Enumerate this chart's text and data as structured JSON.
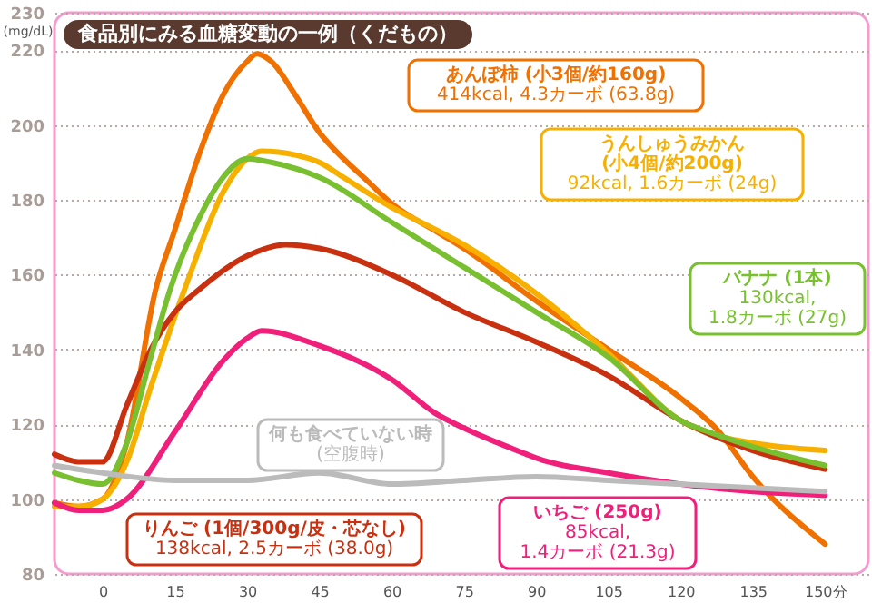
{
  "chart_data": {
    "type": "line",
    "title": "食品別にみる血糖変動の一例（くだもの）",
    "ylabel": "(mg/dL)",
    "xlim": [
      -10,
      159
    ],
    "xticks": [
      0,
      15,
      30,
      45,
      60,
      75,
      90,
      105,
      120,
      135,
      {
        "value": 150,
        "label": "150分"
      }
    ],
    "ylim": [
      80,
      230
    ],
    "yticks": [
      80,
      100,
      120,
      140,
      160,
      180,
      200,
      220,
      230
    ],
    "grid": "y",
    "line_style": "solid",
    "marker": "none",
    "series": [
      {
        "name": "あんぽ柿 (小3個/約160g)",
        "color": "#f07000",
        "x": [
          -10,
          -5,
          0,
          5,
          11,
          15,
          20,
          25,
          30,
          32,
          35,
          40,
          45,
          50,
          55,
          60,
          70,
          75,
          90,
          105,
          120,
          128,
          135,
          150
        ],
        "values": [
          99,
          98,
          100,
          115,
          156,
          172,
          192,
          208,
          217,
          219,
          217,
          208,
          198,
          191,
          185,
          179,
          171,
          167,
          153,
          140,
          127,
          118,
          106,
          88
        ]
      },
      {
        "name": "うんしゅうみかん\n(小4個/約200g)",
        "color": "#f8b000",
        "x": [
          -10,
          -5,
          0,
          5,
          10,
          17,
          25,
          30,
          33,
          40,
          45,
          50,
          60,
          63,
          75,
          90,
          105,
          120,
          125,
          135,
          150
        ],
        "values": [
          98,
          98,
          100,
          110,
          130,
          156,
          182,
          191,
          193,
          192,
          190,
          186,
          178,
          176,
          168,
          155,
          139,
          121,
          118,
          115,
          113
        ]
      },
      {
        "name": "りんご (1個/300g/皮・芯なし)",
        "color": "#c83010",
        "x": [
          -10,
          -5,
          0,
          5,
          10,
          15,
          20,
          30,
          38,
          45,
          60,
          75,
          90,
          105,
          120,
          135,
          150
        ],
        "values": [
          112,
          110,
          110,
          125,
          140,
          150,
          156,
          165,
          168,
          167,
          160,
          150,
          142,
          133,
          121,
          113,
          108
        ]
      },
      {
        "name": "バナナ (1本)",
        "color": "#78c030",
        "x": [
          -10,
          -5,
          0,
          5,
          10,
          14,
          20,
          25,
          30,
          35,
          45,
          60,
          75,
          90,
          105,
          120,
          128,
          135,
          150
        ],
        "values": [
          107,
          105,
          104,
          115,
          138,
          156,
          175,
          186,
          191,
          190,
          186,
          174,
          162,
          150,
          138,
          121,
          117,
          114,
          109
        ]
      },
      {
        "name": "いちご (250g)",
        "color": "#f0207a",
        "x": [
          -10,
          -5,
          0,
          5,
          15,
          25,
          30,
          33,
          45,
          60,
          69,
          75,
          88,
          90,
          105,
          120,
          135,
          150
        ],
        "values": [
          99,
          97,
          97,
          100,
          118,
          137,
          143,
          145,
          141,
          132,
          123,
          119,
          112,
          111,
          107,
          104,
          102,
          101
        ]
      },
      {
        "name": "何も食べていない時",
        "color": "#bbbbbb",
        "x": [
          -10,
          0,
          15,
          30,
          45,
          60,
          75,
          90,
          105,
          120,
          135,
          150
        ],
        "values": [
          109,
          107,
          105,
          105,
          107,
          104,
          105,
          106,
          105,
          104,
          103,
          102
        ]
      }
    ],
    "annotations": [
      "414kcal, 4.3カーボ (63.8g)",
      "92kcal, 1.6カーボ (24g)",
      "138kcal, 2.5カーボ (38.0g)",
      "130kcal,\n1.8カーボ (27g)",
      "85kcal,\n1.4カーボ (21.3g)",
      "(空腹時)"
    ]
  }
}
